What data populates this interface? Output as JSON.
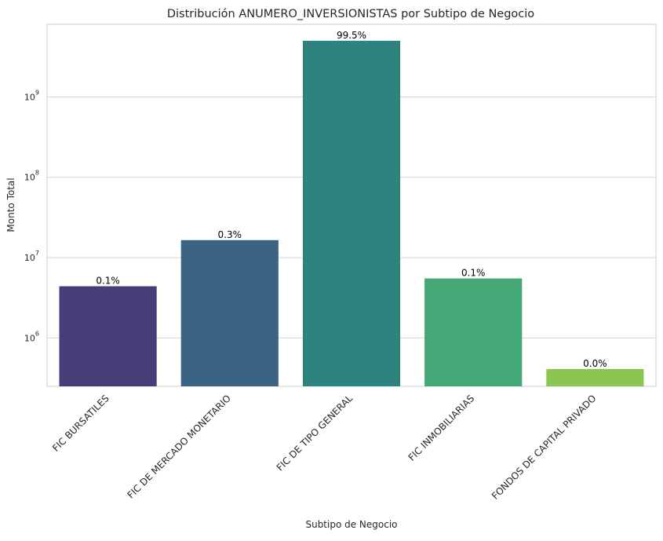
{
  "chart_data": {
    "type": "bar",
    "title": "Distribución ANUMERO_INVERSIONISTAS por Subtipo de Negocio",
    "xlabel": "Subtipo de Negocio",
    "ylabel": "Monto Total",
    "yscale": "log",
    "ylim": [
      250000,
      8000000000
    ],
    "yticks": [
      {
        "value": 1000000,
        "base": "10",
        "exp": "6"
      },
      {
        "value": 10000000,
        "base": "10",
        "exp": "7"
      },
      {
        "value": 100000000,
        "base": "10",
        "exp": "8"
      },
      {
        "value": 1000000000,
        "base": "10",
        "exp": "9"
      }
    ],
    "grid": true,
    "categories": [
      "FIC BURSATILES",
      "FIC DE MERCADO MONETARIO",
      "FIC DE TIPO GENERAL",
      "FIC INMOBILIARIAS",
      "FONDOS DE CAPITAL PRIVADO"
    ],
    "values": [
      4400000,
      16500000,
      5000000000,
      5500000,
      410000
    ],
    "data_labels": [
      "0.1%",
      "0.3%",
      "99.5%",
      "0.1%",
      "0.0%"
    ],
    "colors": [
      "#483d78",
      "#3d6384",
      "#2e837e",
      "#43a875",
      "#8cc652"
    ]
  }
}
